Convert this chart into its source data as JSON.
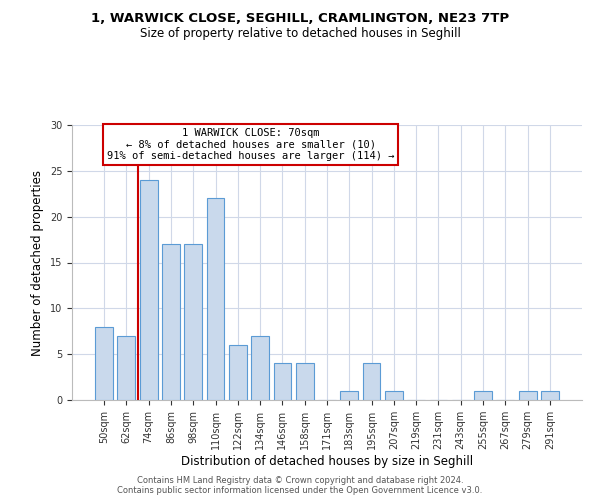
{
  "title_line1": "1, WARWICK CLOSE, SEGHILL, CRAMLINGTON, NE23 7TP",
  "title_line2": "Size of property relative to detached houses in Seghill",
  "xlabel": "Distribution of detached houses by size in Seghill",
  "ylabel": "Number of detached properties",
  "bar_labels": [
    "50sqm",
    "62sqm",
    "74sqm",
    "86sqm",
    "98sqm",
    "110sqm",
    "122sqm",
    "134sqm",
    "146sqm",
    "158sqm",
    "171sqm",
    "183sqm",
    "195sqm",
    "207sqm",
    "219sqm",
    "231sqm",
    "243sqm",
    "255sqm",
    "267sqm",
    "279sqm",
    "291sqm"
  ],
  "bar_values": [
    8,
    7,
    24,
    17,
    17,
    22,
    6,
    7,
    4,
    4,
    0,
    1,
    4,
    1,
    0,
    0,
    0,
    1,
    0,
    1,
    1
  ],
  "bar_color": "#c9d9ec",
  "bar_edge_color": "#5b9bd5",
  "ylim": [
    0,
    30
  ],
  "yticks": [
    0,
    5,
    10,
    15,
    20,
    25,
    30
  ],
  "annotation_text_line1": "1 WARWICK CLOSE: 70sqm",
  "annotation_text_line2": "← 8% of detached houses are smaller (10)",
  "annotation_text_line3": "91% of semi-detached houses are larger (114) →",
  "annotation_box_color": "#ffffff",
  "annotation_box_edge_color": "#cc0000",
  "red_line_color": "#cc0000",
  "footer_line1": "Contains HM Land Registry data © Crown copyright and database right 2024.",
  "footer_line2": "Contains public sector information licensed under the Open Government Licence v3.0.",
  "background_color": "#ffffff",
  "grid_color": "#d0d8e8"
}
